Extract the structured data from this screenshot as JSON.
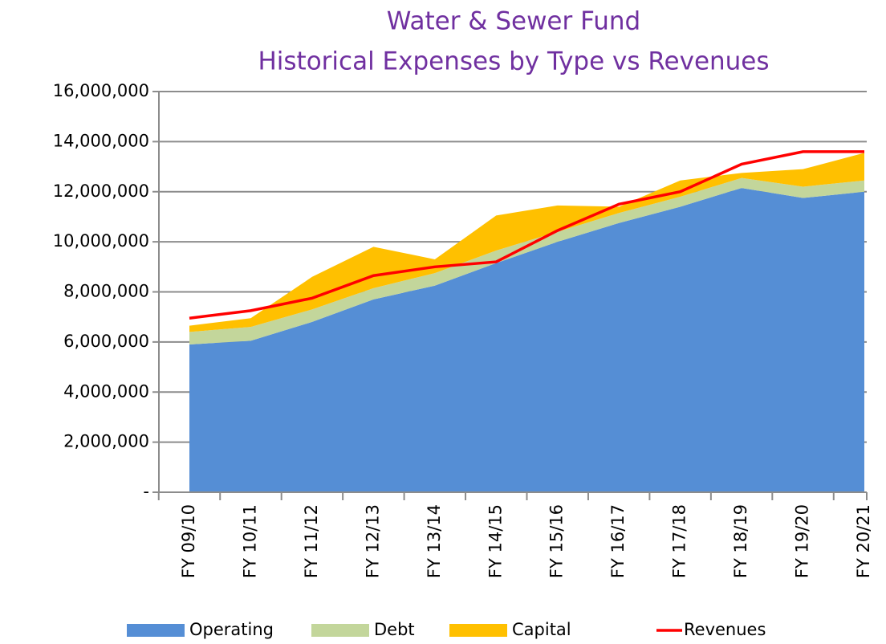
{
  "chart_data": {
    "type": "stacked_area_line",
    "title": "Water & Sewer Fund",
    "subtitle": "Historical Expenses by Type vs Revenues",
    "categories": [
      "FY 09/10",
      "FY 10/11",
      "FY 11/12",
      "FY 12/13",
      "FY 13/14",
      "FY 14/15",
      "FY 15/16",
      "FY 16/17",
      "FY 17/18",
      "FY 18/19",
      "FY 19/20",
      "FY 20/21"
    ],
    "series": [
      {
        "name": "Operating",
        "kind": "area",
        "color": "#558ed5",
        "values": [
          5900000,
          6050000,
          6800000,
          7700000,
          8250000,
          9150000,
          10000000,
          10750000,
          11400000,
          12150000,
          11750000,
          12000000
        ]
      },
      {
        "name": "Debt",
        "kind": "area",
        "color": "#c3d69b",
        "values": [
          500000,
          550000,
          500000,
          450000,
          500000,
          500000,
          400000,
          400000,
          400000,
          400000,
          450000,
          450000
        ]
      },
      {
        "name": "Capital",
        "kind": "area",
        "color": "#ffc000",
        "values": [
          250000,
          350000,
          1300000,
          1650000,
          550000,
          1400000,
          1050000,
          250000,
          650000,
          200000,
          700000,
          1100000
        ]
      },
      {
        "name": "Revenues",
        "kind": "line",
        "color": "#ff0000",
        "values": [
          6950000,
          7250000,
          7750000,
          8650000,
          9000000,
          9200000,
          10450000,
          11500000,
          12000000,
          13100000,
          13600000,
          13600000
        ]
      }
    ],
    "ylim": [
      0,
      16000000
    ],
    "yticks": [
      {
        "value": 0,
        "label": "-"
      },
      {
        "value": 2000000,
        "label": "2,000,000"
      },
      {
        "value": 4000000,
        "label": "4,000,000"
      },
      {
        "value": 6000000,
        "label": "6,000,000"
      },
      {
        "value": 8000000,
        "label": "8,000,000"
      },
      {
        "value": 10000000,
        "label": "10,000,000"
      },
      {
        "value": 12000000,
        "label": "12,000,000"
      },
      {
        "value": 14000000,
        "label": "14,000,000"
      },
      {
        "value": 16000000,
        "label": "16,000,000"
      }
    ],
    "grid": true,
    "legend": "bottom"
  }
}
